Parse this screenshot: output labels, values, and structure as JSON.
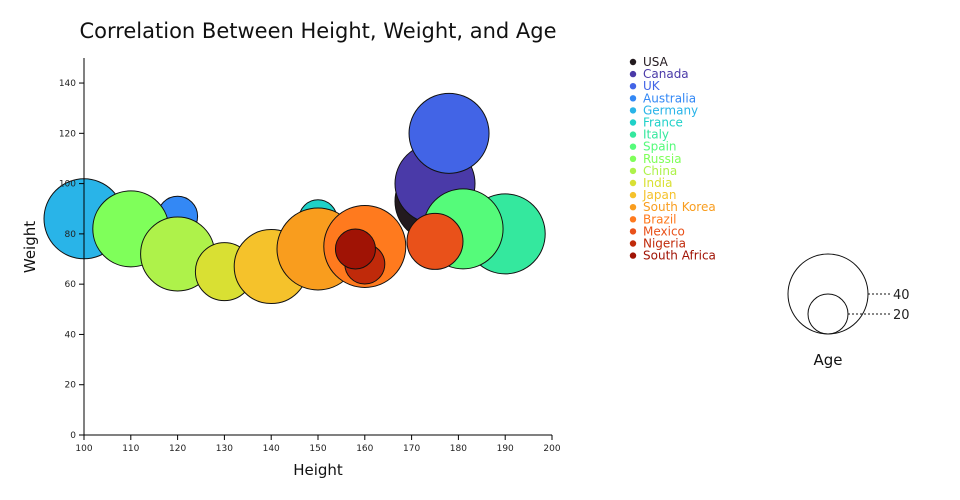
{
  "chart_data": {
    "type": "scatter",
    "title": "Correlation Between Height, Weight, and Age",
    "xlabel": "Height",
    "ylabel": "Weight",
    "xlim": [
      100,
      200
    ],
    "ylim": [
      0,
      150
    ],
    "xticks": [
      100,
      110,
      120,
      130,
      140,
      150,
      160,
      170,
      180,
      190,
      200
    ],
    "yticks": [
      0,
      20,
      40,
      60,
      80,
      100,
      120,
      140
    ],
    "size_label": "Age",
    "size_legend": [
      40,
      20
    ],
    "series": [
      {
        "name": "USA",
        "color": "#231a1f",
        "x": 175,
        "y": 93,
        "age": 40
      },
      {
        "name": "Canada",
        "color": "#4a3aa8",
        "x": 175,
        "y": 100,
        "age": 40
      },
      {
        "name": "UK",
        "color": "#4264e6",
        "x": 178,
        "y": 120,
        "age": 40
      },
      {
        "name": "Australia",
        "color": "#3388f5",
        "x": 120,
        "y": 87,
        "age": 20
      },
      {
        "name": "Germany",
        "color": "#29b4e8",
        "x": 100,
        "y": 86,
        "age": 40
      },
      {
        "name": "France",
        "color": "#1fd1c8",
        "x": 150,
        "y": 86,
        "age": 19
      },
      {
        "name": "Italy",
        "color": "#34e89e",
        "x": 190,
        "y": 80,
        "age": 40
      },
      {
        "name": "Spain",
        "color": "#55fb7a",
        "x": 181,
        "y": 82,
        "age": 40
      },
      {
        "name": "Russia",
        "color": "#7fff5a",
        "x": 110,
        "y": 82,
        "age": 38
      },
      {
        "name": "China",
        "color": "#aef24a",
        "x": 120,
        "y": 72,
        "age": 37
      },
      {
        "name": "India",
        "color": "#d9e033",
        "x": 130,
        "y": 65,
        "age": 29
      },
      {
        "name": "Japan",
        "color": "#f5c22b",
        "x": 140,
        "y": 67,
        "age": 37
      },
      {
        "name": "South Korea",
        "color": "#f99d1e",
        "x": 150,
        "y": 74,
        "age": 41
      },
      {
        "name": "Brazil",
        "color": "#ff7a1e",
        "x": 160,
        "y": 75,
        "age": 41
      },
      {
        "name": "Mexico",
        "color": "#e9511a",
        "x": 175,
        "y": 77,
        "age": 28
      },
      {
        "name": "Nigeria",
        "color": "#c02a0a",
        "x": 160,
        "y": 68,
        "age": 20
      },
      {
        "name": "South Africa",
        "color": "#a01305",
        "x": 158,
        "y": 74,
        "age": 20
      }
    ]
  }
}
